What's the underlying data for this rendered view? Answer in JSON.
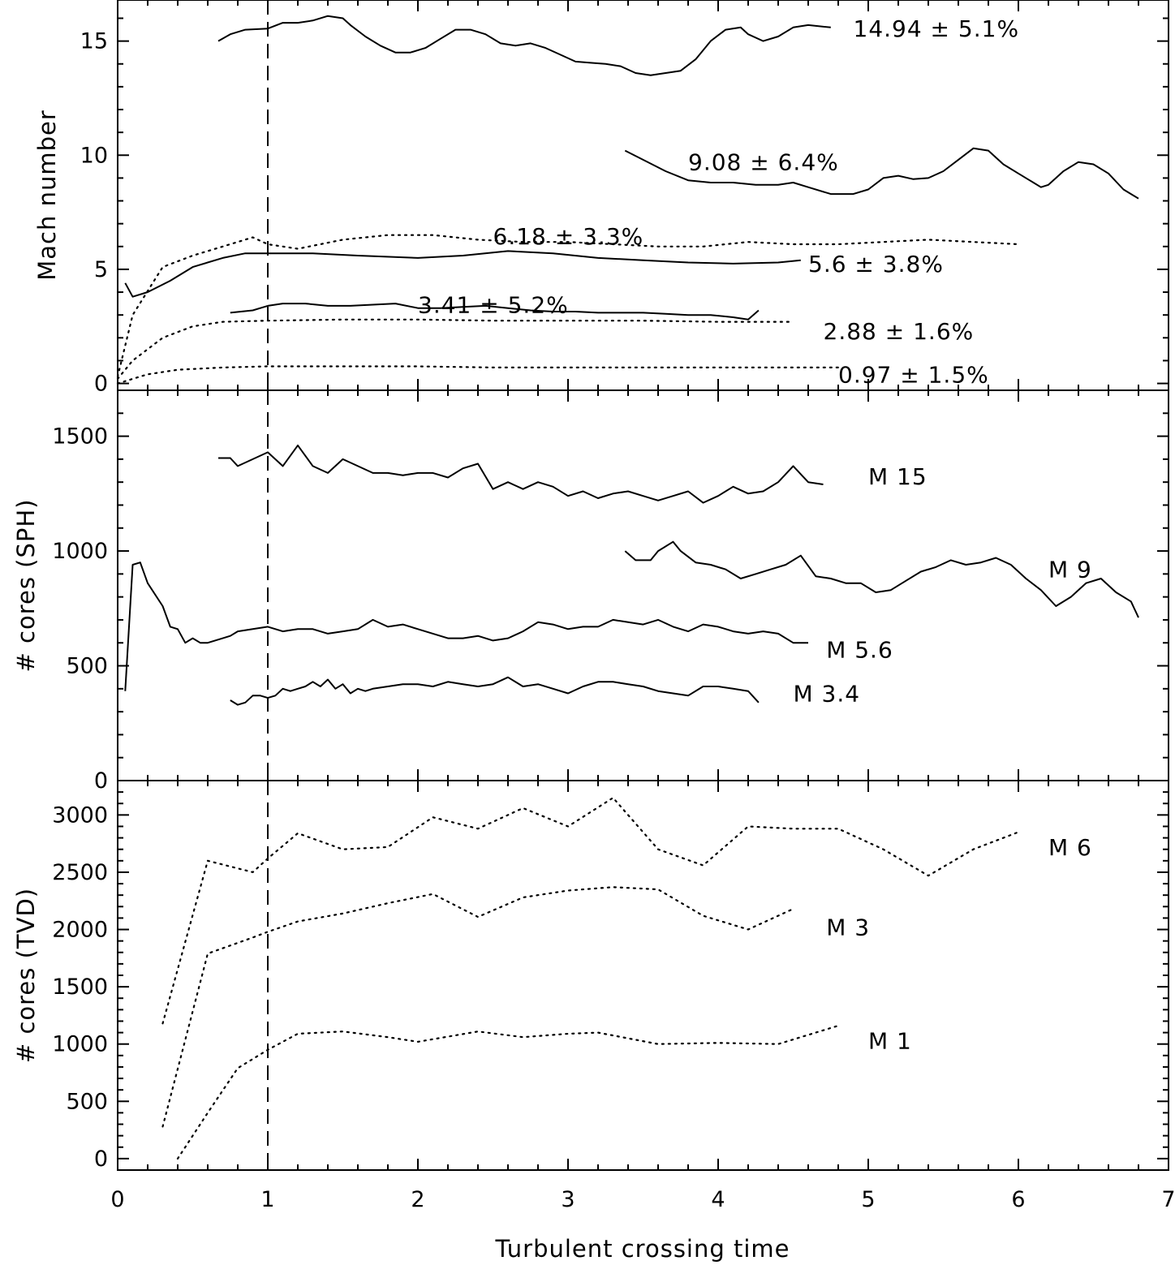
{
  "x_label": "Turbulent crossing time",
  "chart_data": [
    {
      "type": "line",
      "id": "mach",
      "ylabel": "Mach number",
      "xlim": [
        0,
        7
      ],
      "ylim": [
        -0.3,
        16.8
      ],
      "xticks": [
        "0",
        "1",
        "2",
        "3",
        "4",
        "5",
        "6",
        "7"
      ],
      "yticks": [
        0,
        5,
        10,
        15
      ],
      "ytick_labels": [
        "0",
        "5",
        "10",
        "15"
      ],
      "reference_line_x": 1,
      "series": [
        {
          "name": "14.94 ± 5.1%",
          "style": "solid",
          "x": [
            0.67,
            0.75,
            0.85,
            1.0,
            1.1,
            1.2,
            1.3,
            1.4,
            1.5,
            1.55,
            1.65,
            1.75,
            1.85,
            1.95,
            2.05,
            2.15,
            2.25,
            2.35,
            2.45,
            2.55,
            2.65,
            2.75,
            2.85,
            2.95,
            3.05,
            3.15,
            3.25,
            3.35,
            3.45,
            3.55,
            3.65,
            3.75,
            3.85,
            3.95,
            4.05,
            4.15,
            4.2,
            4.3,
            4.4,
            4.5,
            4.6,
            4.75
          ],
          "y": [
            15.0,
            15.3,
            15.5,
            15.55,
            15.8,
            15.8,
            15.9,
            16.1,
            16.0,
            15.7,
            15.2,
            14.8,
            14.5,
            14.5,
            14.7,
            15.1,
            15.5,
            15.5,
            15.3,
            14.9,
            14.8,
            14.9,
            14.7,
            14.4,
            14.1,
            14.05,
            14.0,
            13.9,
            13.6,
            13.5,
            13.6,
            13.7,
            14.2,
            15.0,
            15.5,
            15.6,
            15.3,
            15.0,
            15.2,
            15.6,
            15.7,
            15.6
          ],
          "label_x": 4.9,
          "label_y": 15.55
        },
        {
          "name": "9.08 ± 6.4%",
          "style": "solid",
          "x": [
            3.38,
            3.5,
            3.65,
            3.8,
            3.95,
            4.1,
            4.25,
            4.4,
            4.5,
            4.6,
            4.75,
            4.9,
            5.0,
            5.1,
            5.2,
            5.3,
            5.4,
            5.5,
            5.6,
            5.7,
            5.8,
            5.9,
            6.0,
            6.1,
            6.15,
            6.2,
            6.3,
            6.4,
            6.5,
            6.6,
            6.7,
            6.8
          ],
          "y": [
            10.2,
            9.8,
            9.3,
            8.9,
            8.8,
            8.8,
            8.7,
            8.7,
            8.8,
            8.6,
            8.3,
            8.3,
            8.5,
            9.0,
            9.1,
            8.95,
            9.0,
            9.3,
            9.8,
            10.3,
            10.2,
            9.6,
            9.2,
            8.8,
            8.6,
            8.7,
            9.3,
            9.7,
            9.6,
            9.2,
            8.5,
            8.1
          ],
          "label_x": 3.8,
          "label_y": 9.7
        },
        {
          "name": "6.18 ± 3.3%",
          "style": "dotted",
          "x": [
            0.0,
            0.1,
            0.3,
            0.5,
            0.7,
            0.9,
            1.0,
            1.2,
            1.5,
            1.8,
            2.1,
            2.4,
            2.7,
            3.0,
            3.3,
            3.6,
            3.9,
            4.2,
            4.5,
            4.8,
            5.1,
            5.4,
            5.7,
            6.0
          ],
          "y": [
            0.3,
            3.0,
            5.1,
            5.6,
            6.0,
            6.4,
            6.1,
            5.9,
            6.3,
            6.5,
            6.5,
            6.3,
            6.2,
            6.2,
            6.1,
            6.0,
            6.0,
            6.2,
            6.1,
            6.1,
            6.2,
            6.3,
            6.2,
            6.1
          ],
          "label_x": 2.5,
          "label_y": 6.45
        },
        {
          "name": "5.6 ± 3.8%",
          "style": "solid",
          "x": [
            0.05,
            0.1,
            0.2,
            0.35,
            0.5,
            0.7,
            0.85,
            1.0,
            1.3,
            1.6,
            2.0,
            2.3,
            2.6,
            2.9,
            3.2,
            3.5,
            3.8,
            4.1,
            4.4,
            4.55
          ],
          "y": [
            4.4,
            3.8,
            4.0,
            4.5,
            5.1,
            5.5,
            5.7,
            5.7,
            5.7,
            5.6,
            5.5,
            5.6,
            5.8,
            5.7,
            5.5,
            5.4,
            5.3,
            5.25,
            5.3,
            5.4
          ],
          "label_x": 4.6,
          "label_y": 5.25
        },
        {
          "name": "3.41 ± 5.2%",
          "style": "solid",
          "x": [
            0.75,
            0.9,
            1.0,
            1.1,
            1.25,
            1.4,
            1.55,
            1.7,
            1.85,
            2.0,
            2.15,
            2.3,
            2.45,
            2.6,
            2.75,
            2.9,
            3.05,
            3.2,
            3.35,
            3.5,
            3.65,
            3.8,
            3.95,
            4.1,
            4.2,
            4.27
          ],
          "y": [
            3.1,
            3.2,
            3.4,
            3.5,
            3.5,
            3.4,
            3.4,
            3.45,
            3.5,
            3.3,
            3.3,
            3.35,
            3.4,
            3.3,
            3.2,
            3.15,
            3.15,
            3.1,
            3.1,
            3.1,
            3.05,
            3.0,
            3.0,
            2.9,
            2.8,
            3.2
          ],
          "label_x": 2.0,
          "label_y": 3.45
        },
        {
          "name": "2.88 ± 1.6%",
          "style": "dotted",
          "x": [
            0.0,
            0.1,
            0.3,
            0.5,
            0.7,
            1.0,
            1.5,
            2.0,
            2.5,
            3.0,
            3.5,
            4.0,
            4.5
          ],
          "y": [
            0.2,
            1.0,
            2.0,
            2.5,
            2.7,
            2.75,
            2.8,
            2.8,
            2.75,
            2.75,
            2.75,
            2.7,
            2.7
          ],
          "label_x": 4.7,
          "label_y": 2.3
        },
        {
          "name": "0.97 ± 1.5%",
          "style": "dotted",
          "x": [
            0.0,
            0.1,
            0.2,
            0.4,
            0.7,
            1.0,
            1.5,
            2.0,
            2.5,
            3.0,
            3.5,
            4.0,
            4.5,
            4.8
          ],
          "y": [
            0.0,
            0.2,
            0.4,
            0.6,
            0.7,
            0.75,
            0.75,
            0.75,
            0.7,
            0.7,
            0.7,
            0.7,
            0.7,
            0.7
          ],
          "label_x": 4.8,
          "label_y": 0.4
        }
      ]
    },
    {
      "type": "line",
      "id": "sph",
      "ylabel": "# cores (SPH)",
      "xlim": [
        0,
        7
      ],
      "ylim": [
        0,
        1700
      ],
      "yticks": [
        0,
        500,
        1000,
        1500
      ],
      "ytick_labels": [
        "0",
        "500",
        "1000",
        "1500"
      ],
      "reference_line_x": 1,
      "series": [
        {
          "name": "M 15",
          "style": "solid",
          "x": [
            0.67,
            0.75,
            0.8,
            0.9,
            1.0,
            1.1,
            1.2,
            1.3,
            1.4,
            1.5,
            1.6,
            1.7,
            1.8,
            1.9,
            2.0,
            2.1,
            2.2,
            2.3,
            2.4,
            2.5,
            2.6,
            2.7,
            2.8,
            2.9,
            3.0,
            3.1,
            3.2,
            3.3,
            3.4,
            3.5,
            3.6,
            3.7,
            3.8,
            3.9,
            4.0,
            4.1,
            4.2,
            4.3,
            4.4,
            4.5,
            4.6,
            4.7
          ],
          "y": [
            1405,
            1405,
            1370,
            1400,
            1430,
            1370,
            1460,
            1370,
            1340,
            1400,
            1370,
            1340,
            1340,
            1330,
            1340,
            1340,
            1320,
            1360,
            1380,
            1270,
            1300,
            1270,
            1300,
            1280,
            1240,
            1260,
            1230,
            1250,
            1260,
            1240,
            1220,
            1240,
            1260,
            1210,
            1240,
            1280,
            1250,
            1260,
            1300,
            1370,
            1300,
            1290
          ],
          "label_x": 5.0,
          "label_y": 1325
        },
        {
          "name": "M 9",
          "style": "solid",
          "x": [
            3.38,
            3.45,
            3.55,
            3.6,
            3.7,
            3.75,
            3.85,
            3.95,
            4.05,
            4.15,
            4.25,
            4.35,
            4.45,
            4.55,
            4.65,
            4.75,
            4.85,
            4.95,
            5.05,
            5.15,
            5.25,
            5.35,
            5.45,
            5.55,
            5.65,
            5.75,
            5.85,
            5.95,
            6.05,
            6.15,
            6.25,
            6.35,
            6.45,
            6.55,
            6.65,
            6.75,
            6.8
          ],
          "y": [
            1000,
            960,
            960,
            1000,
            1040,
            1000,
            950,
            940,
            920,
            880,
            900,
            920,
            940,
            980,
            890,
            880,
            860,
            860,
            820,
            830,
            870,
            910,
            930,
            960,
            940,
            950,
            970,
            940,
            880,
            830,
            760,
            800,
            860,
            880,
            820,
            780,
            710
          ],
          "label_x": 6.2,
          "label_y": 920
        },
        {
          "name": "M 5.6",
          "style": "solid",
          "x": [
            0.05,
            0.1,
            0.15,
            0.2,
            0.3,
            0.35,
            0.4,
            0.45,
            0.5,
            0.55,
            0.6,
            0.7,
            0.75,
            0.8,
            0.9,
            1.0,
            1.1,
            1.2,
            1.3,
            1.4,
            1.5,
            1.6,
            1.7,
            1.8,
            1.9,
            2.0,
            2.1,
            2.2,
            2.3,
            2.4,
            2.5,
            2.6,
            2.7,
            2.8,
            2.9,
            3.0,
            3.1,
            3.2,
            3.3,
            3.4,
            3.5,
            3.6,
            3.7,
            3.8,
            3.9,
            4.0,
            4.1,
            4.2,
            4.3,
            4.4,
            4.5,
            4.6
          ],
          "y": [
            390,
            940,
            950,
            860,
            760,
            670,
            660,
            600,
            620,
            600,
            600,
            620,
            630,
            650,
            660,
            670,
            650,
            660,
            660,
            640,
            650,
            660,
            700,
            670,
            680,
            660,
            640,
            620,
            620,
            630,
            610,
            620,
            650,
            690,
            680,
            660,
            670,
            670,
            700,
            690,
            680,
            700,
            670,
            650,
            680,
            670,
            650,
            640,
            650,
            640,
            600,
            600
          ],
          "label_x": 4.72,
          "label_y": 570
        },
        {
          "name": "M 3.4",
          "style": "solid",
          "x": [
            0.75,
            0.8,
            0.85,
            0.9,
            0.95,
            1.0,
            1.05,
            1.1,
            1.15,
            1.2,
            1.25,
            1.3,
            1.35,
            1.4,
            1.45,
            1.5,
            1.55,
            1.6,
            1.65,
            1.7,
            1.8,
            1.9,
            2.0,
            2.1,
            2.2,
            2.3,
            2.4,
            2.5,
            2.6,
            2.7,
            2.8,
            2.9,
            3.0,
            3.1,
            3.2,
            3.3,
            3.4,
            3.5,
            3.6,
            3.7,
            3.8,
            3.9,
            4.0,
            4.1,
            4.2,
            4.27
          ],
          "y": [
            350,
            330,
            340,
            370,
            370,
            360,
            370,
            400,
            390,
            400,
            410,
            430,
            410,
            440,
            400,
            420,
            380,
            400,
            390,
            400,
            410,
            420,
            420,
            410,
            430,
            420,
            410,
            420,
            450,
            410,
            420,
            400,
            380,
            410,
            430,
            430,
            420,
            410,
            390,
            380,
            370,
            410,
            410,
            400,
            390,
            340
          ],
          "label_x": 4.5,
          "label_y": 380
        }
      ]
    },
    {
      "type": "line",
      "id": "tvd",
      "ylabel": "# cores (TVD)",
      "xlim": [
        0,
        7
      ],
      "ylim": [
        -100,
        3300
      ],
      "yticks": [
        0,
        500,
        1000,
        1500,
        2000,
        2500,
        3000
      ],
      "ytick_labels": [
        "0",
        "500",
        "1000",
        "1500",
        "2000",
        "2500",
        "3000"
      ],
      "reference_line_x": 1,
      "series": [
        {
          "name": "M 6",
          "style": "dotted",
          "x": [
            0.3,
            0.6,
            0.9,
            1.0,
            1.2,
            1.5,
            1.8,
            2.1,
            2.4,
            2.7,
            3.0,
            3.3,
            3.6,
            3.9,
            4.2,
            4.5,
            4.8,
            5.1,
            5.4,
            5.7,
            6.0
          ],
          "y": [
            1180,
            2600,
            2500,
            2620,
            2840,
            2700,
            2720,
            2980,
            2880,
            3060,
            2900,
            3150,
            2700,
            2560,
            2900,
            2880,
            2880,
            2700,
            2470,
            2700,
            2850
          ],
          "label_x": 6.2,
          "label_y": 2720
        },
        {
          "name": "M 3",
          "style": "dotted",
          "x": [
            0.3,
            0.6,
            0.9,
            1.0,
            1.2,
            1.5,
            1.8,
            2.1,
            2.4,
            2.7,
            3.0,
            3.3,
            3.6,
            3.9,
            4.2,
            4.5
          ],
          "y": [
            280,
            1790,
            1930,
            1980,
            2070,
            2140,
            2230,
            2310,
            2110,
            2280,
            2340,
            2370,
            2350,
            2120,
            2000,
            2180
          ],
          "label_x": 4.72,
          "label_y": 2020
        },
        {
          "name": "M 1",
          "style": "dotted",
          "x": [
            0.4,
            0.6,
            0.8,
            1.0,
            1.2,
            1.5,
            1.8,
            2.0,
            2.4,
            2.7,
            3.0,
            3.2,
            3.6,
            4.0,
            4.4,
            4.8
          ],
          "y": [
            0,
            400,
            790,
            950,
            1090,
            1110,
            1060,
            1020,
            1110,
            1060,
            1090,
            1100,
            1000,
            1010,
            1000,
            1160
          ],
          "label_x": 5.0,
          "label_y": 1030
        }
      ]
    }
  ]
}
